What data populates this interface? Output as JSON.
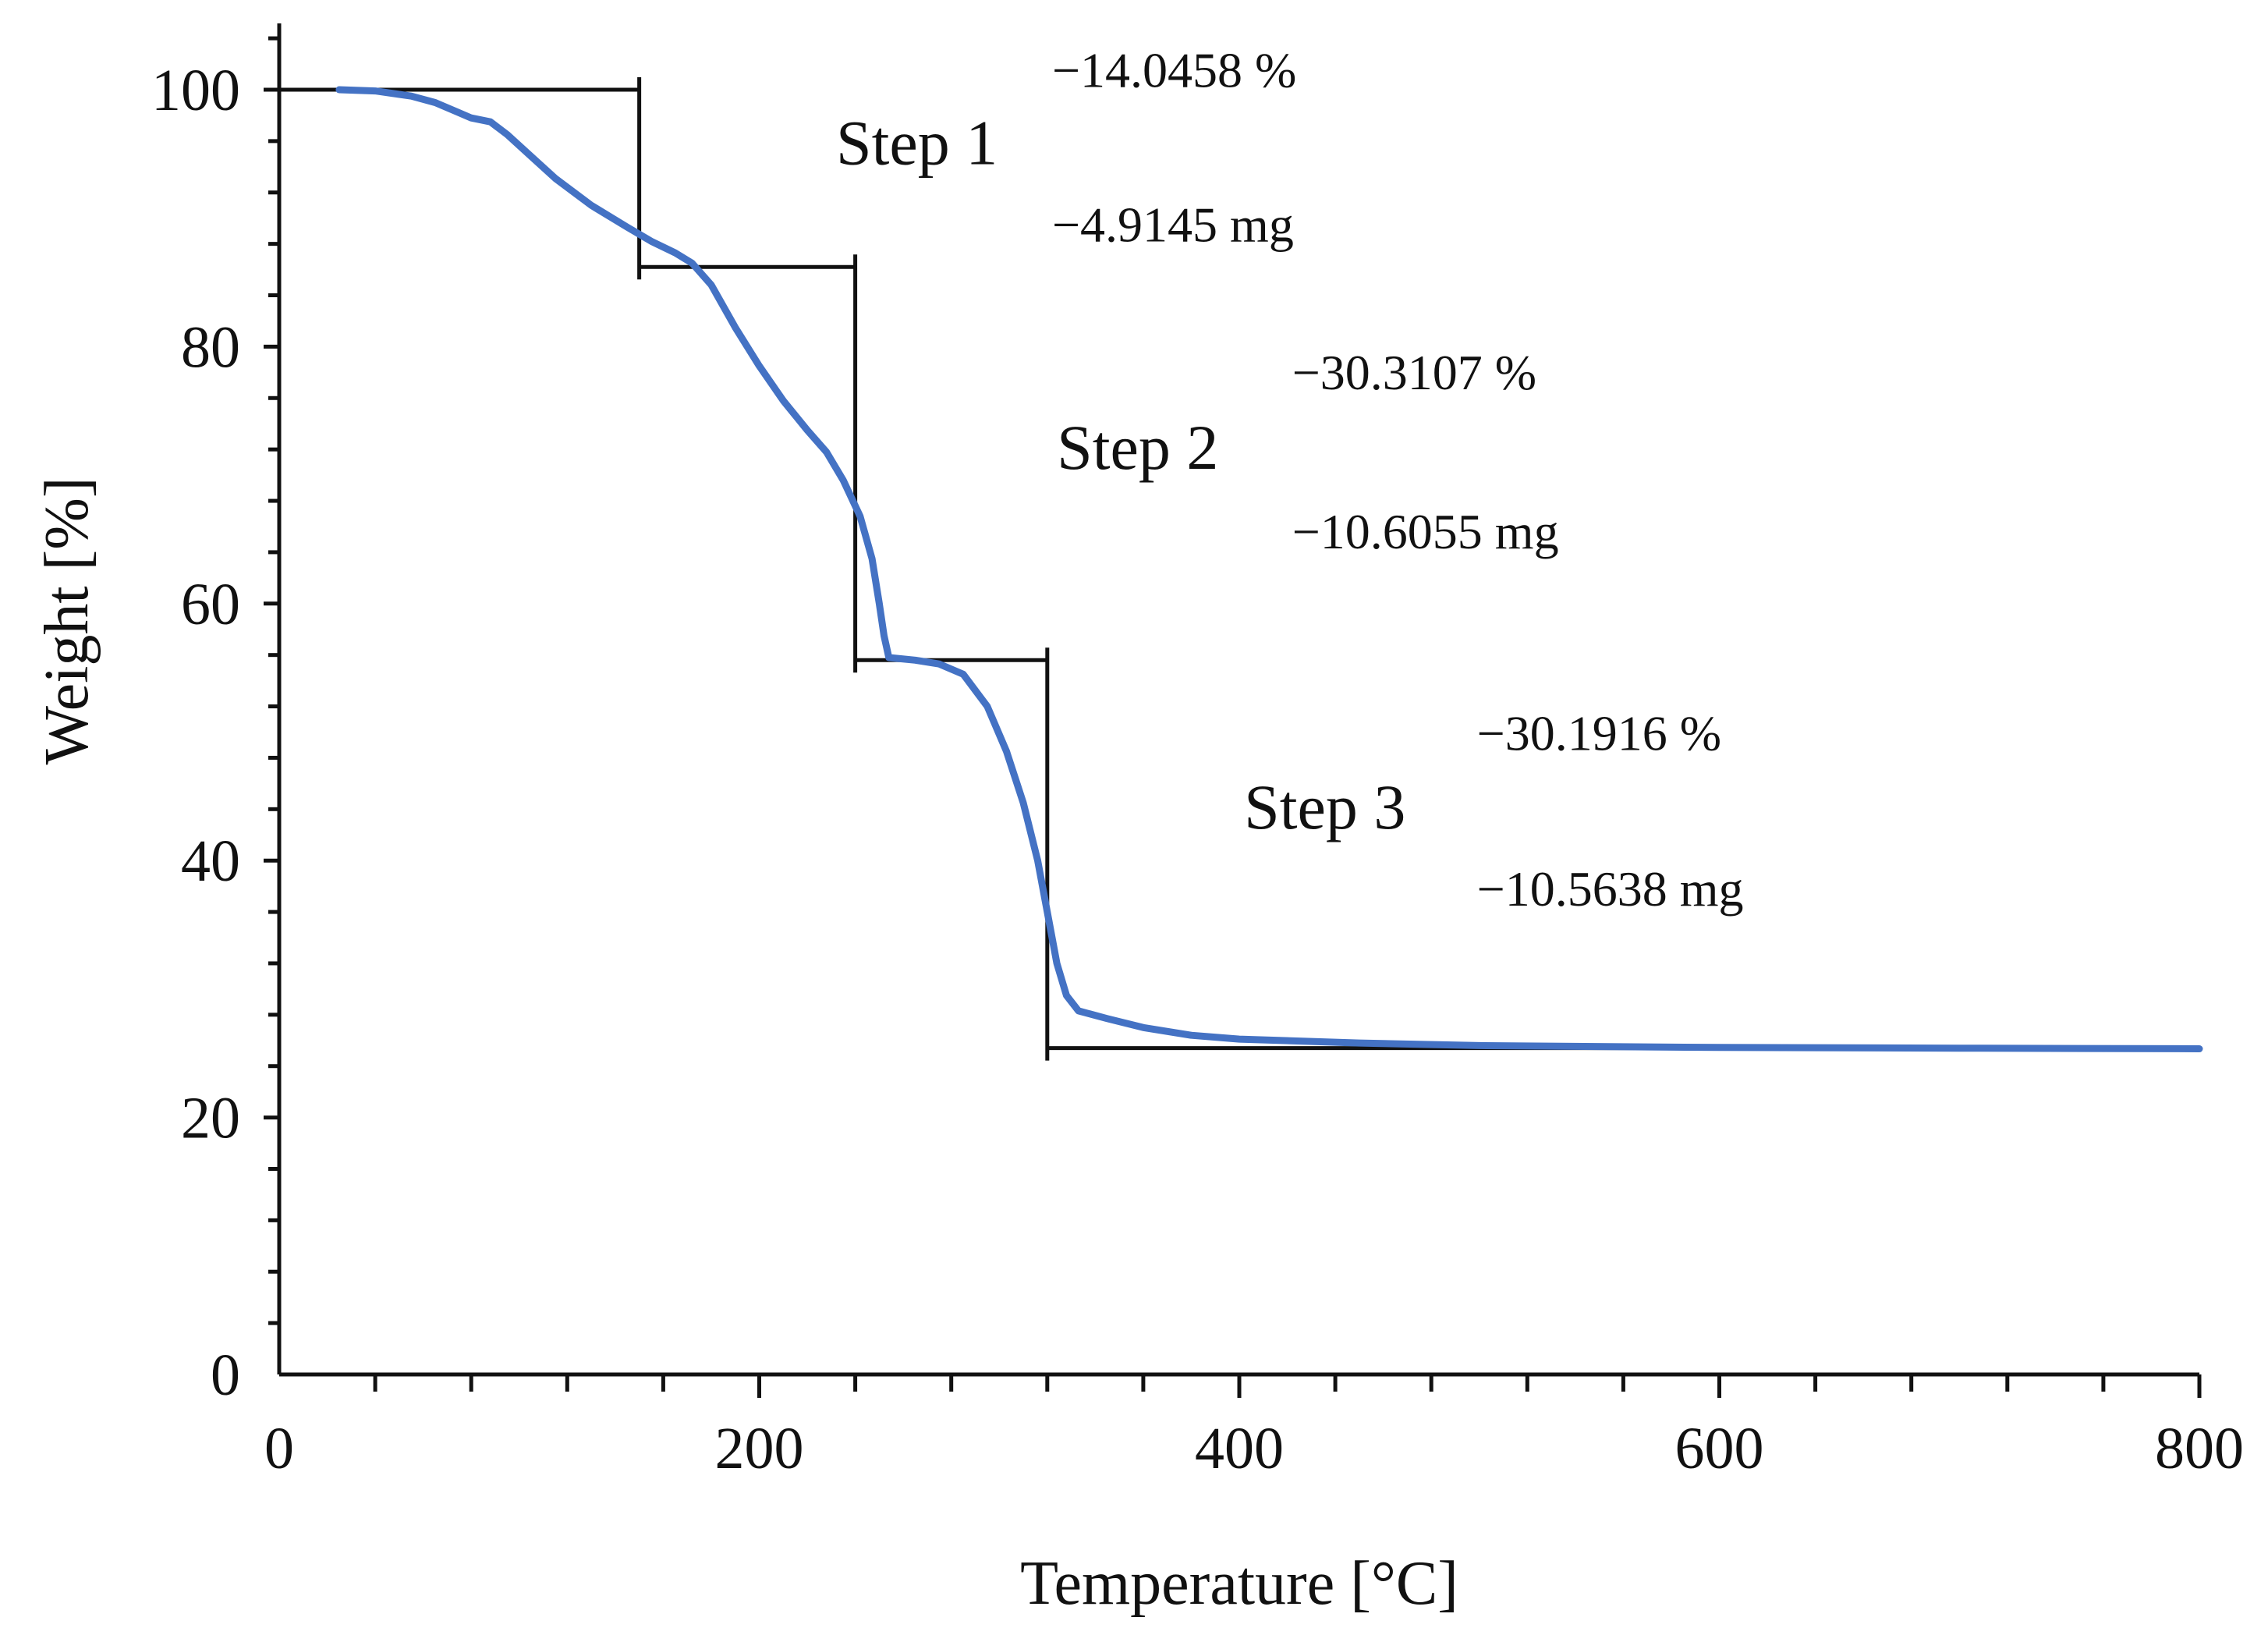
{
  "chart_data": {
    "type": "line",
    "title": "",
    "xlabel": "Temperature [°C]",
    "ylabel": "Weight [%]",
    "xlim": [
      0,
      800
    ],
    "ylim": [
      0,
      105
    ],
    "x_ticks": [
      0,
      200,
      400,
      600,
      800
    ],
    "y_ticks": [
      0,
      20,
      40,
      60,
      80,
      100
    ],
    "x_minor_step": 40,
    "y_minor_step": 4,
    "grid": false,
    "colors": {
      "series": "#4472c4",
      "axis": "#111111",
      "step_lines": "#111111"
    },
    "series": [
      {
        "name": "Weight",
        "points": [
          [
            25,
            100.0
          ],
          [
            40,
            99.9
          ],
          [
            55,
            99.5
          ],
          [
            65,
            99.0
          ],
          [
            75,
            98.2
          ],
          [
            80,
            97.8
          ],
          [
            88,
            97.5
          ],
          [
            95,
            96.5
          ],
          [
            105,
            94.8
          ],
          [
            115,
            93.1
          ],
          [
            130,
            91.0
          ],
          [
            145,
            89.3
          ],
          [
            155,
            88.2
          ],
          [
            165,
            87.3
          ],
          [
            172,
            86.5
          ],
          [
            180,
            84.8
          ],
          [
            190,
            81.5
          ],
          [
            200,
            78.5
          ],
          [
            210,
            75.8
          ],
          [
            220,
            73.5
          ],
          [
            228,
            71.8
          ],
          [
            235,
            69.6
          ],
          [
            242,
            66.8
          ],
          [
            247,
            63.5
          ],
          [
            250,
            60.0
          ],
          [
            252,
            57.5
          ],
          [
            254,
            55.8
          ],
          [
            265,
            55.6
          ],
          [
            275,
            55.3
          ],
          [
            285,
            54.5
          ],
          [
            295,
            52.0
          ],
          [
            303,
            48.5
          ],
          [
            310,
            44.5
          ],
          [
            316,
            40.0
          ],
          [
            320,
            36.0
          ],
          [
            324,
            32.0
          ],
          [
            328,
            29.5
          ],
          [
            333,
            28.3
          ],
          [
            345,
            27.7
          ],
          [
            360,
            27.0
          ],
          [
            380,
            26.4
          ],
          [
            400,
            26.1
          ],
          [
            450,
            25.8
          ],
          [
            500,
            25.6
          ],
          [
            600,
            25.45
          ],
          [
            700,
            25.4
          ],
          [
            800,
            25.35
          ]
        ]
      }
    ],
    "step_markers": [
      {
        "start": [
          0,
          100
        ],
        "end": [
          150,
          86.2
        ]
      },
      {
        "start": [
          150,
          86.2
        ],
        "end": [
          240,
          55.6
        ]
      },
      {
        "start": [
          240,
          55.6
        ],
        "end": [
          320,
          25.4
        ]
      },
      {
        "start": [
          320,
          25.4
        ],
        "end": [
          800,
          25.4
        ]
      }
    ],
    "annotations": [
      {
        "text": "Step 1",
        "x": 232,
        "y": 94.2
      },
      {
        "text": "Step 2",
        "x": 324,
        "y": 70.5
      },
      {
        "text": "Step 3",
        "x": 402,
        "y": 42.5
      },
      {
        "text": "−14.0458 %",
        "x": 322,
        "y": 100.2
      },
      {
        "text": "−4.9145 mg",
        "x": 322,
        "y": 88.2
      },
      {
        "text": "−30.3107 %",
        "x": 422,
        "y": 76.7
      },
      {
        "text": "−10.6055 mg",
        "x": 422,
        "y": 64.3
      },
      {
        "text": "−30.1916 %",
        "x": 499,
        "y": 48.6
      },
      {
        "text": "−10.5638 mg",
        "x": 499,
        "y": 36.5
      }
    ]
  }
}
